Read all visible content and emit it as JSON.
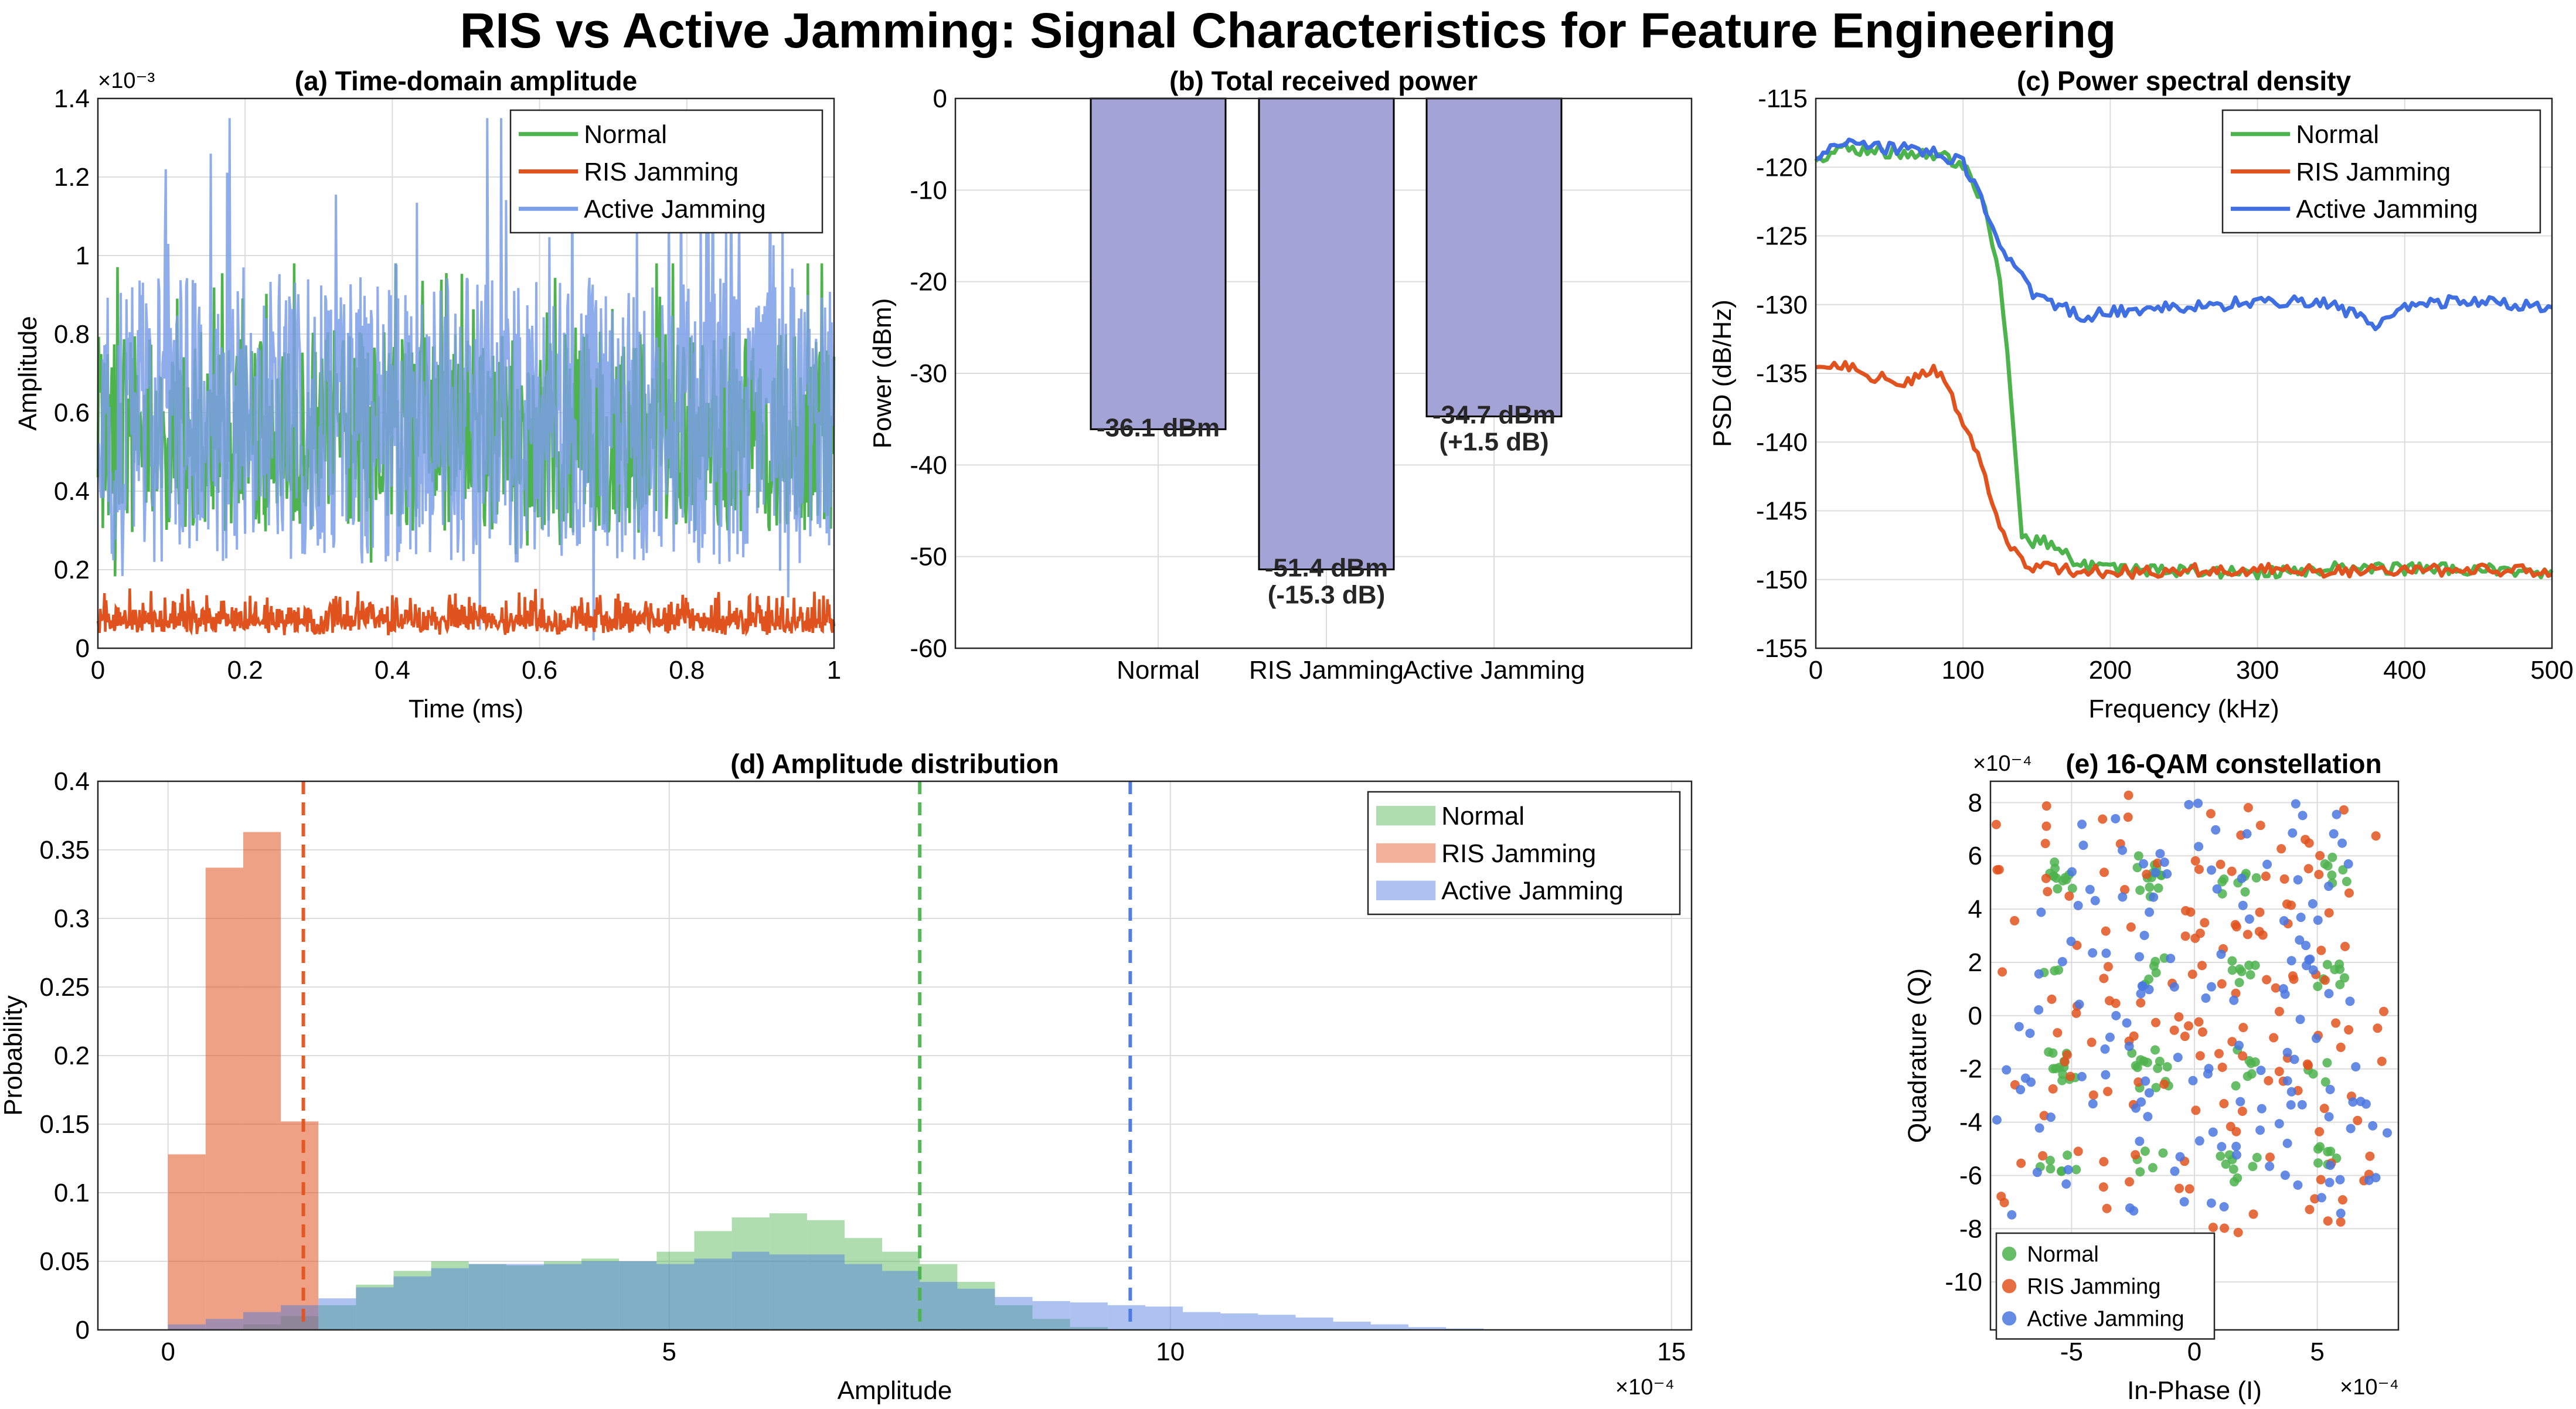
{
  "figure": {
    "title": "RIS vs Active Jamming: Signal Characteristics for Feature Engineering"
  },
  "colors": {
    "normal": "#4db34d",
    "ris": "#e0531f",
    "active": "#4a77e0",
    "active_light": "#7b9ee8",
    "bar_fill": "#a3a3d6"
  },
  "chart_data": [
    {
      "id": "a",
      "type": "line",
      "title": "(a) Time-domain amplitude",
      "xlabel": "Time (ms)",
      "ylabel": "Amplitude",
      "yexponent": "×10⁻³",
      "xlim": [
        0,
        1
      ],
      "ylim": [
        0,
        0.0014
      ],
      "xticks": [
        "0",
        "0.2",
        "0.4",
        "0.6",
        "0.8",
        "1"
      ],
      "yticks": [
        "0",
        "0.2",
        "0.4",
        "0.6",
        "0.8",
        "1",
        "1.2",
        "1.4"
      ],
      "grid": true,
      "legend": "top-right",
      "series": [
        {
          "name": "Normal",
          "color": "#4db34d",
          "range": [
            5e-05,
            0.00098
          ],
          "mean": 0.00055
        },
        {
          "name": "RIS Jamming",
          "color": "#e0531f",
          "range": [
            0.0,
            0.00016
          ],
          "mean": 8e-05
        },
        {
          "name": "Active Jamming",
          "color": "#7b9ee8",
          "range": [
            2e-05,
            0.00135
          ],
          "mean": 0.00058
        }
      ]
    },
    {
      "id": "b",
      "type": "bar",
      "title": "(b) Total received power",
      "ylabel": "Power (dBm)",
      "ylim": [
        -60,
        0
      ],
      "yticks": [
        "0",
        "-10",
        "-20",
        "-30",
        "-40",
        "-50",
        "-60"
      ],
      "categories": [
        "Normal",
        "RIS Jamming",
        "Active Jamming"
      ],
      "values": [
        -36.1,
        -51.4,
        -34.7
      ],
      "labels": [
        [
          "-36.1 dBm"
        ],
        [
          "-51.4 dBm",
          "(-15.3 dB)"
        ],
        [
          "-34.7 dBm",
          "(+1.5 dB)"
        ]
      ],
      "grid": true
    },
    {
      "id": "c",
      "type": "line",
      "title": "(c) Power spectral density",
      "xlabel": "Frequency (kHz)",
      "ylabel": "PSD (dB/Hz)",
      "xlim": [
        0,
        500
      ],
      "ylim": [
        -155,
        -115
      ],
      "xticks": [
        "0",
        "100",
        "200",
        "300",
        "400",
        "500"
      ],
      "yticks": [
        "-115",
        "-120",
        "-125",
        "-130",
        "-135",
        "-140",
        "-145",
        "-150",
        "-155"
      ],
      "grid": true,
      "legend": "top-right",
      "series": [
        {
          "name": "Normal",
          "color": "#4db34d",
          "x": [
            0,
            20,
            40,
            60,
            80,
            95,
            105,
            115,
            125,
            130,
            135,
            140,
            145,
            150,
            160,
            180,
            200,
            250,
            300,
            350,
            400,
            450,
            500
          ],
          "y": [
            -119.5,
            -118.6,
            -118.8,
            -119,
            -119,
            -119.7,
            -120.5,
            -123,
            -128,
            -133,
            -140,
            -146.5,
            -147.5,
            -147,
            -147.5,
            -149,
            -149.3,
            -149.4,
            -149.5,
            -149.2,
            -149.2,
            -149.3,
            -149.5
          ]
        },
        {
          "name": "RIS Jamming",
          "color": "#e0531f",
          "x": [
            0,
            20,
            40,
            60,
            80,
            90,
            100,
            110,
            120,
            130,
            140,
            150,
            160,
            180,
            200,
            250,
            300,
            350,
            400,
            450,
            500
          ],
          "y": [
            -134.5,
            -134.3,
            -135.2,
            -135.8,
            -134.8,
            -136,
            -138.5,
            -141,
            -144.5,
            -147.5,
            -148.8,
            -149.1,
            -149.2,
            -149.4,
            -149.5,
            -149.3,
            -149.3,
            -149.4,
            -149.3,
            -149.3,
            -149.3
          ]
        },
        {
          "name": "Active Jamming",
          "color": "#3f6fe0",
          "x": [
            0,
            20,
            40,
            60,
            80,
            100,
            110,
            120,
            130,
            140,
            150,
            160,
            170,
            180,
            190,
            200,
            250,
            300,
            350,
            380,
            400,
            450,
            500
          ],
          "y": [
            -119.3,
            -118.3,
            -118.5,
            -118.7,
            -118.8,
            -119.7,
            -121.5,
            -124.5,
            -126.5,
            -128,
            -129.5,
            -130,
            -130.3,
            -131,
            -130.7,
            -130.5,
            -130.2,
            -129.8,
            -129.8,
            -131.7,
            -130,
            -129.7,
            -130.3
          ]
        }
      ]
    },
    {
      "id": "d",
      "type": "histogram",
      "title": "(d) Amplitude distribution",
      "xlabel": "Amplitude",
      "ylabel": "Probability",
      "xexponent": "×10⁻⁴",
      "xlim": [
        -7e-05,
        0.00152
      ],
      "ylim": [
        0,
        0.4
      ],
      "xticks": [
        "0",
        "5",
        "10",
        "15"
      ],
      "yticks": [
        "0",
        "0.05",
        "0.1",
        "0.15",
        "0.2",
        "0.25",
        "0.3",
        "0.35",
        "0.4"
      ],
      "grid": true,
      "legend": "top-right",
      "series": [
        {
          "name": "Normal",
          "color": "#4db34d",
          "binwidth": 3.75e-05,
          "start": 0.0,
          "values": [
            0.0,
            0.0,
            0.004,
            0.01,
            0.018,
            0.033,
            0.043,
            0.05,
            0.048,
            0.047,
            0.05,
            0.052,
            0.05,
            0.057,
            0.072,
            0.082,
            0.085,
            0.08,
            0.067,
            0.057,
            0.048,
            0.035,
            0.018,
            0.008,
            0.002,
            0.0,
            0.0,
            0.0,
            0.0,
            0.0,
            0.0,
            0.0,
            0.0,
            0.0,
            0.0,
            0.0
          ],
          "mean_line": 0.00075
        },
        {
          "name": "RIS Jamming",
          "color": "#e0531f",
          "binwidth": 3.75e-05,
          "start": 0.0,
          "values": [
            0.128,
            0.337,
            0.363,
            0.152,
            0.0,
            0.0,
            0.0,
            0.0,
            0.0,
            0.0,
            0.0,
            0.0,
            0.0,
            0.0,
            0.0,
            0.0,
            0.0,
            0.0,
            0.0,
            0.0,
            0.0,
            0.0,
            0.0,
            0.0,
            0.0,
            0.0,
            0.0,
            0.0,
            0.0,
            0.0,
            0.0,
            0.0,
            0.0,
            0.0,
            0.0,
            0.0
          ],
          "mean_line": 0.000135
        },
        {
          "name": "Active Jamming",
          "color": "#4a77e0",
          "binwidth": 3.75e-05,
          "start": 0.0,
          "values": [
            0.004,
            0.008,
            0.013,
            0.018,
            0.023,
            0.031,
            0.039,
            0.045,
            0.048,
            0.048,
            0.048,
            0.05,
            0.05,
            0.048,
            0.052,
            0.057,
            0.055,
            0.055,
            0.048,
            0.043,
            0.035,
            0.03,
            0.024,
            0.021,
            0.02,
            0.018,
            0.017,
            0.013,
            0.012,
            0.011,
            0.009,
            0.006,
            0.004,
            0.002,
            0.001,
            0.0
          ],
          "mean_line": 0.00096
        }
      ]
    },
    {
      "id": "e",
      "type": "scatter",
      "title": "(e) 16-QAM constellation",
      "xlabel": "In-Phase (I)",
      "ylabel": "Quadrature (Q)",
      "xexponent": "×10⁻⁴",
      "yexponent": "×10⁻⁴",
      "xlim": [
        -0.00083,
        0.00083
      ],
      "ylim": [
        -0.00118,
        0.00088
      ],
      "xticks": [
        "-5",
        "0",
        "5"
      ],
      "yticks": [
        "8",
        "6",
        "4",
        "2",
        "0",
        "-2",
        "-4",
        "-6",
        "-8",
        "-10"
      ],
      "grid": true,
      "legend": "bottom-left",
      "series": [
        {
          "name": "Normal",
          "color": "#4db34d",
          "count": 130,
          "spread": 7e-05
        },
        {
          "name": "RIS Jamming",
          "color": "#e0531f",
          "count": 160,
          "spread": 0.00025
        },
        {
          "name": "Active Jamming",
          "color": "#4a77e0",
          "count": 150,
          "spread": 0.00026
        }
      ]
    }
  ]
}
